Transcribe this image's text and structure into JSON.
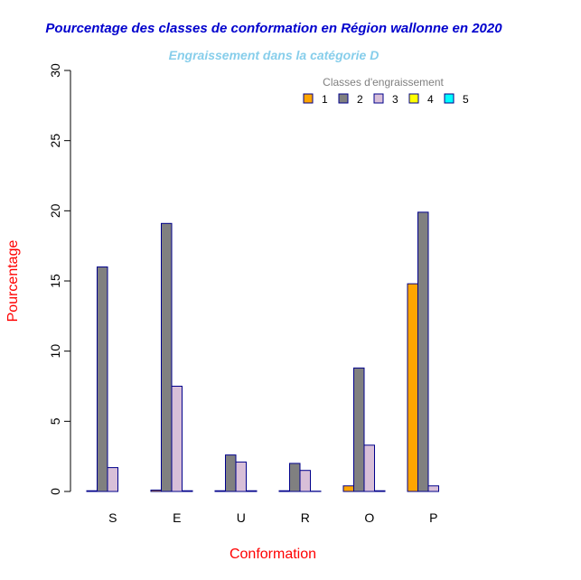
{
  "chart_data": {
    "type": "bar",
    "title": "Pourcentage des classes de conformation en Région wallonne en 2020",
    "subtitle": "Engraissement dans la catégorie D",
    "xlabel": "Conformation",
    "ylabel": "Pourcentage",
    "ylim": [
      0,
      30
    ],
    "yticks": [
      "0",
      "5",
      "10",
      "15",
      "20",
      "25",
      "30"
    ],
    "categories": [
      "S",
      "E",
      "U",
      "R",
      "O",
      "P"
    ],
    "legend": {
      "title": "Classes d'engraissement",
      "position": "top-right"
    },
    "series": [
      {
        "name": "1",
        "color": "#FFA500",
        "values": [
          0.05,
          0.1,
          0.05,
          0.05,
          0.4,
          14.8
        ]
      },
      {
        "name": "2",
        "color": "#808080",
        "values": [
          16.0,
          19.1,
          2.6,
          2.0,
          8.8,
          19.9
        ]
      },
      {
        "name": "3",
        "color": "#D8BFD8",
        "values": [
          1.7,
          7.5,
          2.1,
          1.5,
          3.3,
          0.4
        ]
      },
      {
        "name": "4",
        "color": "#FFFF00",
        "values": [
          0.0,
          0.05,
          0.05,
          0.02,
          0.05,
          0.0
        ]
      },
      {
        "name": "5",
        "color": "#00FFFF",
        "values": [
          0,
          0,
          0,
          0,
          0,
          0
        ]
      }
    ]
  },
  "colors": {
    "title": "#0000CD",
    "subtitle": "#87CEEB",
    "axis_label": "#FF0000",
    "bar_border": "#00008B",
    "legend_title": "#808080"
  }
}
